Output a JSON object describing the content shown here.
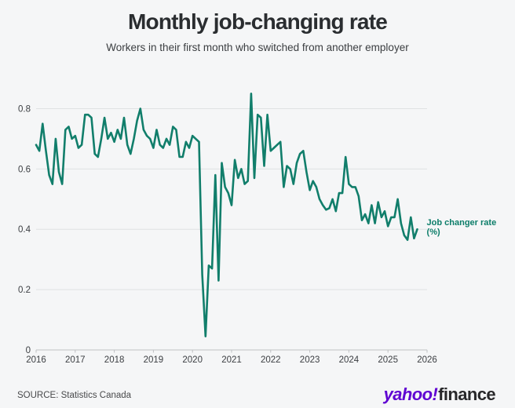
{
  "header": {
    "title": "Monthly job-changing rate",
    "subtitle": "Workers in their first month who switched from another employer"
  },
  "chart_data": {
    "type": "line",
    "title": "Monthly job-changing rate",
    "xlabel": "",
    "ylabel": "",
    "grid": "horizontal",
    "x_tick_years": [
      2016,
      2017,
      2018,
      2019,
      2020,
      2021,
      2022,
      2023,
      2024,
      2025,
      2026
    ],
    "y_ticks": [
      0,
      0.2,
      0.4,
      0.6,
      0.8
    ],
    "y_tick_labels": [
      "0",
      "0.2",
      "0.4",
      "0.6",
      "0.8"
    ],
    "ylim": [
      0,
      0.9
    ],
    "xlim_years": [
      2016,
      2026
    ],
    "line_color": "#117e6b",
    "annotation": {
      "lines": [
        "Job changer rate",
        "(%)"
      ],
      "color": "#0c7d69"
    },
    "series": [
      {
        "name": "Job changer rate (%)",
        "frequency": "monthly",
        "start": "2016-01",
        "end": "2025-10",
        "values": [
          0.68,
          0.66,
          0.75,
          0.66,
          0.58,
          0.55,
          0.7,
          0.59,
          0.55,
          0.73,
          0.74,
          0.7,
          0.71,
          0.67,
          0.68,
          0.78,
          0.78,
          0.77,
          0.65,
          0.64,
          0.7,
          0.77,
          0.7,
          0.72,
          0.69,
          0.73,
          0.7,
          0.77,
          0.68,
          0.65,
          0.7,
          0.76,
          0.8,
          0.73,
          0.71,
          0.7,
          0.67,
          0.73,
          0.68,
          0.67,
          0.7,
          0.68,
          0.74,
          0.73,
          0.64,
          0.64,
          0.69,
          0.67,
          0.71,
          0.7,
          0.69,
          0.25,
          0.045,
          0.28,
          0.27,
          0.58,
          0.23,
          0.62,
          0.54,
          0.52,
          0.48,
          0.63,
          0.57,
          0.6,
          0.55,
          0.56,
          0.85,
          0.57,
          0.78,
          0.77,
          0.61,
          0.78,
          0.66,
          0.67,
          0.68,
          0.69,
          0.54,
          0.61,
          0.6,
          0.55,
          0.62,
          0.65,
          0.66,
          0.59,
          0.53,
          0.56,
          0.54,
          0.5,
          0.48,
          0.465,
          0.47,
          0.5,
          0.46,
          0.52,
          0.52,
          0.64,
          0.55,
          0.54,
          0.54,
          0.51,
          0.43,
          0.45,
          0.42,
          0.48,
          0.42,
          0.49,
          0.44,
          0.46,
          0.41,
          0.44,
          0.44,
          0.5,
          0.42,
          0.38,
          0.365,
          0.44,
          0.37,
          0.4
        ]
      }
    ]
  },
  "footer": {
    "source": "SOURCE: Statistics Canada",
    "logo": {
      "yahoo": "yahoo",
      "bang": "!",
      "finance": "finance"
    }
  },
  "colors": {
    "background": "#f5f6f7",
    "line": "#117e6b",
    "annotation_text": "#0c7d69",
    "gridline": "#dfe1e3",
    "axis_line": "#bfc1c3",
    "axis_text": "#3b3e42",
    "title_text": "#2a2d30",
    "yahoo_purple": "#5f01d2",
    "finance_black": "#28282a"
  }
}
